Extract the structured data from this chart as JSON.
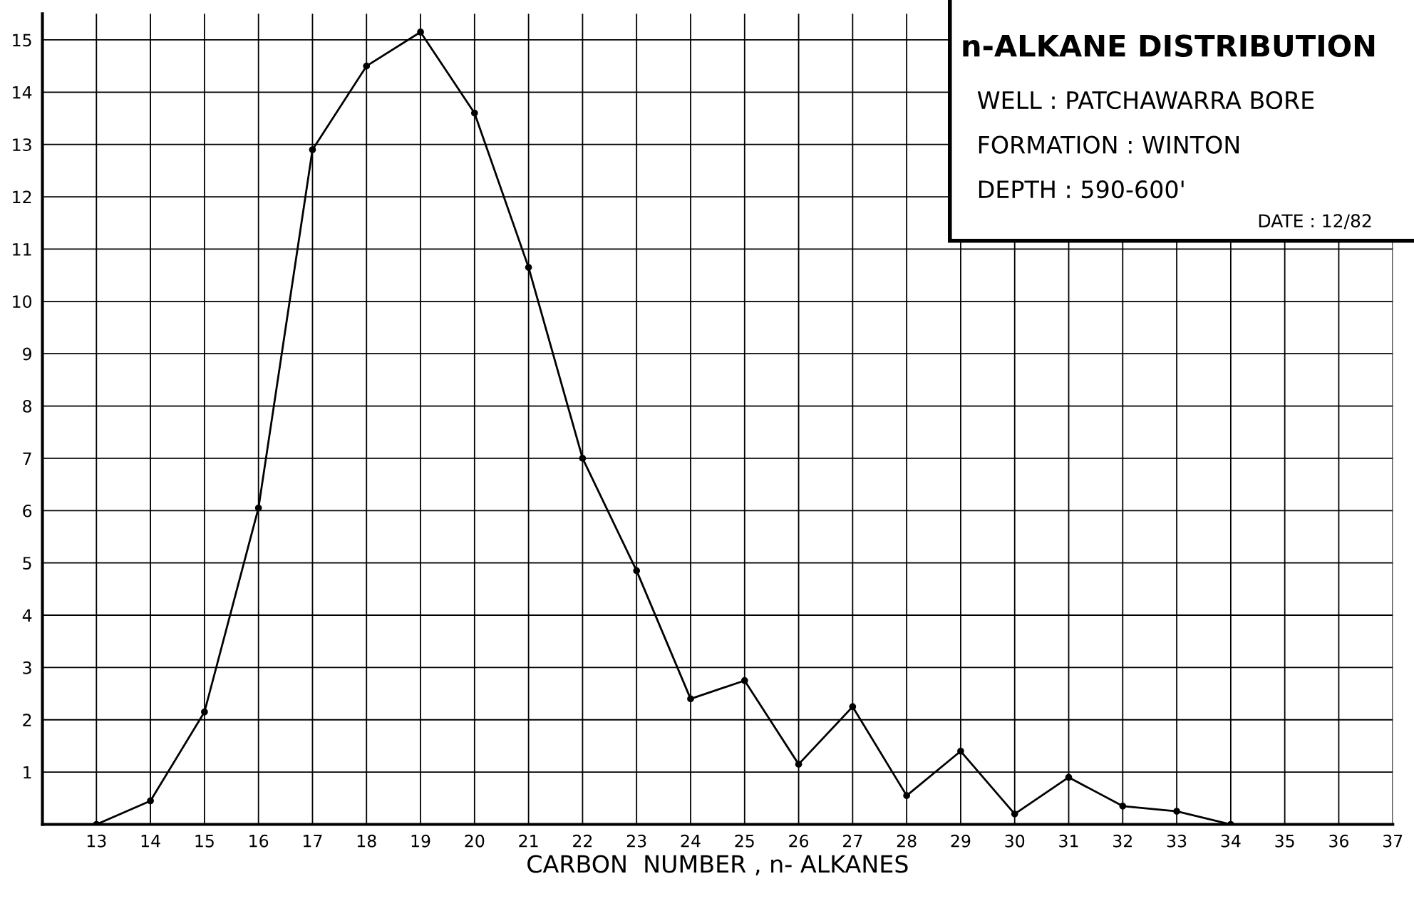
{
  "chart_data": {
    "type": "line",
    "title": "n-ALKANE DISTRIBUTION",
    "xlabel": "CARBON  NUMBER , n- ALKANES",
    "x": [
      13,
      14,
      15,
      16,
      17,
      18,
      19,
      20,
      21,
      22,
      23,
      24,
      25,
      26,
      27,
      28,
      29,
      30,
      31,
      32,
      33,
      34
    ],
    "series": [
      {
        "color": "#000000",
        "values": [
          0,
          0.45,
          2.15,
          6.05,
          12.9,
          14.5,
          15.15,
          13.6,
          10.65,
          7.0,
          4.85,
          2.4,
          2.75,
          1.15,
          2.25,
          0.55,
          1.4,
          0.2,
          0.9,
          0.35,
          0.25,
          0
        ]
      }
    ],
    "xlim": [
      12,
      37
    ],
    "xticks": [
      13,
      14,
      15,
      16,
      17,
      18,
      19,
      20,
      21,
      22,
      23,
      24,
      25,
      26,
      27,
      28,
      29,
      30,
      31,
      32,
      33,
      34,
      35,
      36,
      37
    ],
    "ylim": [
      0,
      15.5
    ],
    "yticks": [
      1,
      2,
      3,
      4,
      5,
      6,
      7,
      8,
      9,
      10,
      11,
      12,
      13,
      14,
      15
    ],
    "grid": true,
    "marker": "circle",
    "line_style": "solid",
    "annotations": [
      "WELL : PATCHAWARRA BORE",
      "FORMATION : WINTON",
      "DEPTH : 590-600'",
      "DATE : 12/82"
    ]
  }
}
